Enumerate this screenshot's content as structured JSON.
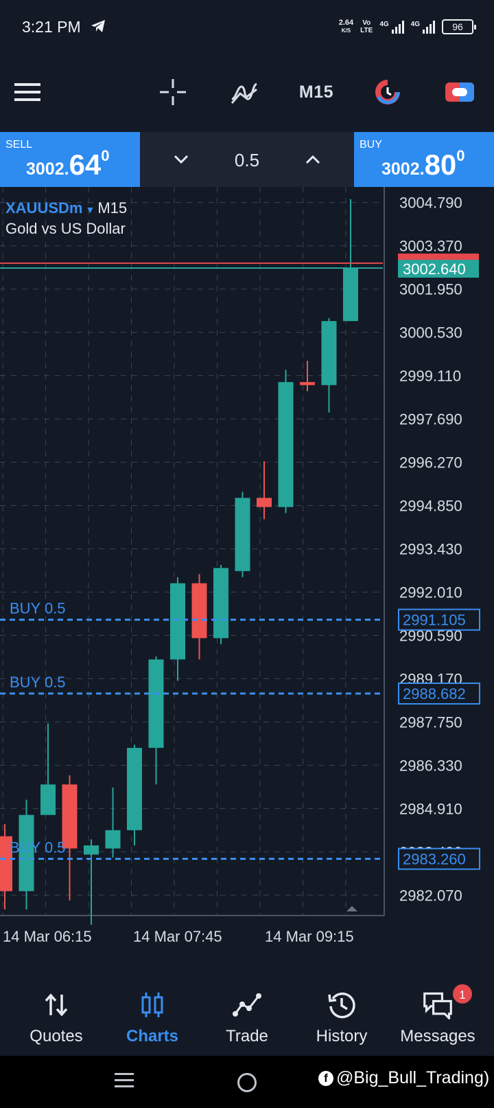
{
  "status_bar": {
    "time": "3:21 PM",
    "speed_value": "2.64",
    "speed_unit": "K/S",
    "volte_top": "Vo",
    "volte_bottom": "LTE",
    "net1": "4G",
    "net2": "4G",
    "battery": "96"
  },
  "toolbar": {
    "menu_icon": "hamburger-menu-icon",
    "crosshair_icon": "crosshair-icon",
    "indicators_icon": "indicators-icon",
    "timeframe": "M15",
    "objects_icon": "chart-objects-icon",
    "trade_toggle_icon": "one-click-trading-icon"
  },
  "trade_panel": {
    "sell_label": "SELL",
    "sell_main": "3002.",
    "sell_big": "64",
    "sell_sup": "0",
    "buy_label": "BUY",
    "buy_main": "3002.",
    "buy_big": "80",
    "buy_sup": "0",
    "lot": "0.5"
  },
  "chart": {
    "symbol": "XAUUSDm",
    "timeframe": "M15",
    "description": "Gold vs US Dollar"
  },
  "chart_data": {
    "type": "candlestick",
    "price_axis_labels": [
      "3004.790",
      "3003.370",
      "3001.950",
      "3000.530",
      "2999.110",
      "2997.690",
      "2996.270",
      "2994.850",
      "2993.430",
      "2992.010",
      "2990.590",
      "2989.170",
      "2987.750",
      "2986.330",
      "2984.910",
      "2983.490",
      "2982.070"
    ],
    "price_labels_hidden": [
      "3002.800",
      "2983.490"
    ],
    "ylim": [
      2981.4,
      3005.3
    ],
    "time_axis_labels": [
      "14 Mar 06:15",
      "14 Mar 07:45",
      "14 Mar 09:15"
    ],
    "bid_price": "3002.640",
    "ask_price": "3002.800",
    "bid_value": 3002.64,
    "ask_value": 3002.8,
    "candles": [
      {
        "o": 2984.0,
        "h": 2984.4,
        "l": 2981.6,
        "c": 2982.2
      },
      {
        "o": 2982.2,
        "h": 2985.2,
        "l": 2981.6,
        "c": 2984.7
      },
      {
        "o": 2984.7,
        "h": 2987.7,
        "l": 2984.7,
        "c": 2985.7
      },
      {
        "o": 2985.7,
        "h": 2986.0,
        "l": 2981.9,
        "c": 2983.6
      },
      {
        "o": 2983.4,
        "h": 2983.9,
        "l": 2981.1,
        "c": 2983.7
      },
      {
        "o": 2983.6,
        "h": 2985.6,
        "l": 2983.3,
        "c": 2984.2
      },
      {
        "o": 2984.2,
        "h": 2987.0,
        "l": 2983.7,
        "c": 2986.9
      },
      {
        "o": 2986.9,
        "h": 2989.9,
        "l": 2985.7,
        "c": 2989.8
      },
      {
        "o": 2989.8,
        "h": 2992.5,
        "l": 2989.1,
        "c": 2992.3
      },
      {
        "o": 2992.3,
        "h": 2992.6,
        "l": 2989.8,
        "c": 2990.5
      },
      {
        "o": 2990.5,
        "h": 2992.9,
        "l": 2990.3,
        "c": 2992.8
      },
      {
        "o": 2992.7,
        "h": 2995.3,
        "l": 2992.5,
        "c": 2995.1
      },
      {
        "o": 2995.1,
        "h": 2996.3,
        "l": 2994.4,
        "c": 2994.8
      },
      {
        "o": 2994.8,
        "h": 2999.3,
        "l": 2994.6,
        "c": 2998.9
      },
      {
        "o": 2998.9,
        "h": 2999.6,
        "l": 2998.6,
        "c": 2998.8
      },
      {
        "o": 2998.8,
        "h": 3001.0,
        "l": 2997.9,
        "c": 3000.9
      },
      {
        "o": 3000.9,
        "h": 3004.9,
        "l": 3000.9,
        "c": 3002.64
      }
    ],
    "positions": [
      {
        "label": "BUY 0.5",
        "price": "2991.105",
        "value": 2991.105
      },
      {
        "label": "BUY 0.5",
        "price": "2988.682",
        "value": 2988.682
      },
      {
        "label": "BUY 0.5",
        "price": "2983.260",
        "value": 2983.26
      }
    ],
    "colors": {
      "up": "#26a69a",
      "down": "#ef5350",
      "grid": "#3a4354",
      "position_line": "#3a8ef0",
      "ask_line": "#e5484d",
      "bid_line": "#26a69a",
      "background": "#131a26"
    }
  },
  "bottom_nav": {
    "items": [
      {
        "label": "Quotes",
        "icon": "quotes-sort-icon"
      },
      {
        "label": "Charts",
        "icon": "charts-candles-icon"
      },
      {
        "label": "Trade",
        "icon": "trade-line-icon"
      },
      {
        "label": "History",
        "icon": "history-clock-icon"
      },
      {
        "label": "Messages",
        "icon": "messages-chat-icon",
        "badge": "1"
      }
    ]
  },
  "system_nav": {
    "watermark": "@Big_Bull_Trading)",
    "fb_letter": "f"
  }
}
